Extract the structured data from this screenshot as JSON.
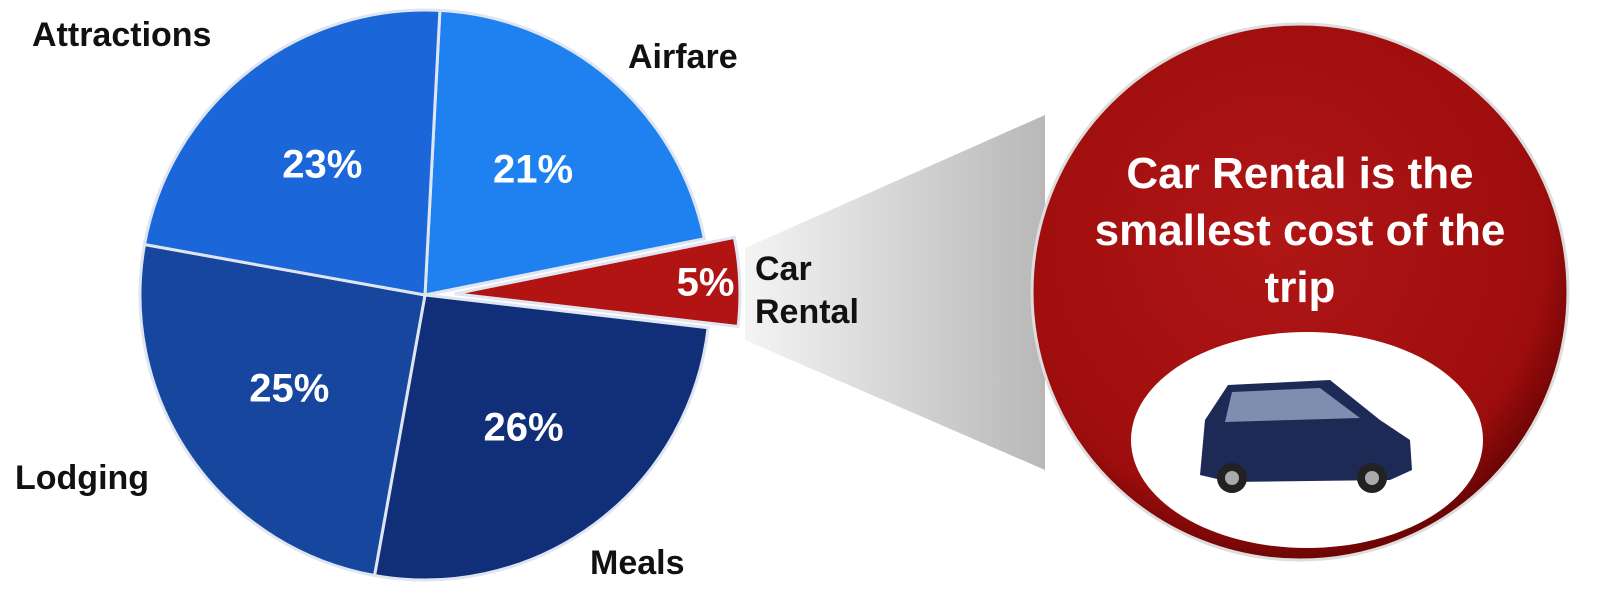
{
  "chart_data": {
    "type": "pie",
    "categories": [
      "Airfare",
      "Car Rental",
      "Meals",
      "Lodging",
      "Attractions"
    ],
    "values": [
      21,
      5,
      26,
      25,
      23
    ],
    "value_labels": [
      "21%",
      "5%",
      "26%",
      "25%",
      "23%"
    ],
    "colors": [
      "#1f80ef",
      "#b21414",
      "#112f78",
      "#17469f",
      "#1b67d9"
    ],
    "annotation": "Car Rental is the smallest cost of the trip"
  }
}
